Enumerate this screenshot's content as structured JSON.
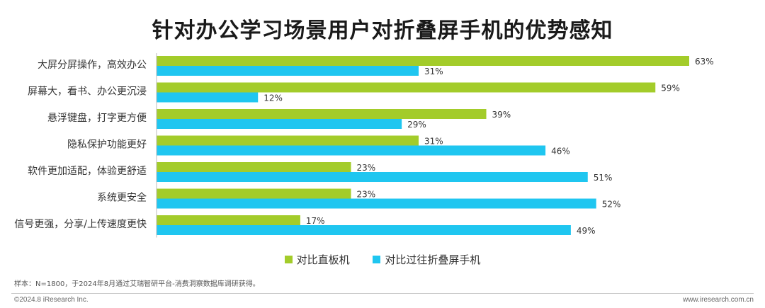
{
  "title": "针对办公学习场景用户对折叠屏手机的优势感知",
  "chart_data": {
    "type": "bar",
    "orientation": "horizontal",
    "categories": [
      "大屏分屏操作，高效办公",
      "屏幕大，看书、办公更沉浸",
      "悬浮键盘，打字更方便",
      "隐私保护功能更好",
      "软件更加适配，体验更舒适",
      "系统更安全",
      "信号更强，分享/上传速度更快"
    ],
    "series": [
      {
        "name": "对比直板机",
        "color": "#a3cc2a",
        "values": [
          63,
          59,
          39,
          31,
          23,
          23,
          17
        ]
      },
      {
        "name": "对比过往折叠屏手机",
        "color": "#1fc6f0",
        "values": [
          31,
          12,
          29,
          46,
          51,
          52,
          49
        ]
      }
    ],
    "value_suffix": "%",
    "xlim": [
      0,
      63
    ],
    "legend_position": "bottom",
    "grid": false
  },
  "note": "样本：N=1800，于2024年8月通过艾瑞智研平台-消费洞察数据库调研获得。",
  "copyright": "©2024.8 iResearch Inc.",
  "website": "www.iresearch.com.cn"
}
